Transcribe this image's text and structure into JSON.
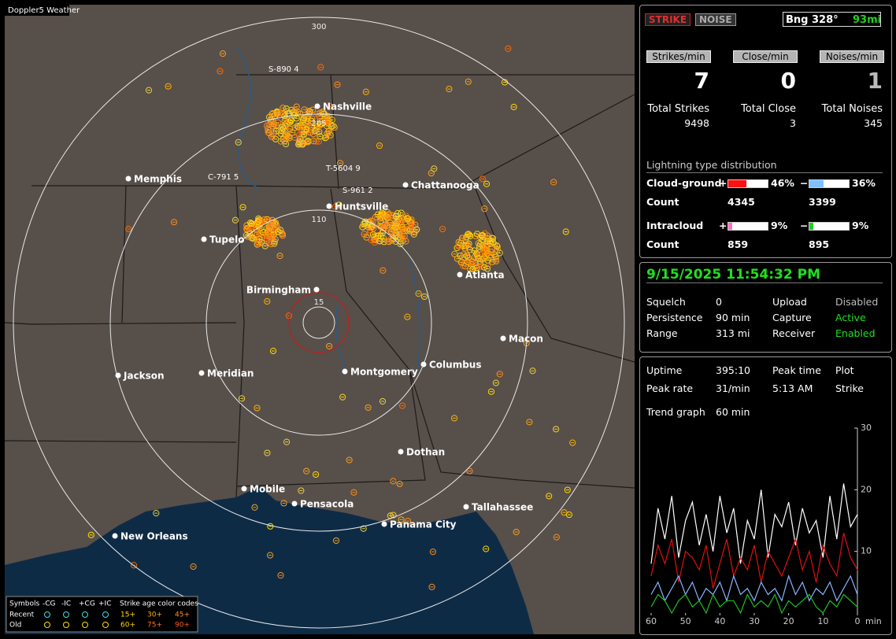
{
  "map": {
    "title": "Doppler5 Weather",
    "range_labels": [
      "300",
      "205",
      "110",
      "15"
    ],
    "stations": [
      "S-890 4",
      "T-5604 9",
      "C-791 5",
      "S-961 2"
    ],
    "cities": [
      "Nashville",
      "Memphis",
      "Chattanooga",
      "Huntsville",
      "Tupelo",
      "Atlanta",
      "Birmingham",
      "Macon",
      "Jackson",
      "Meridian",
      "Montgomery",
      "Columbus",
      "Dothan",
      "Mobile",
      "Pensacola",
      "Tallahassee",
      "Panama City",
      "New Orleans"
    ]
  },
  "legend": {
    "symbols_label": "Symbols",
    "symbols": [
      "-CG",
      "-IC",
      "+CG",
      "+IC"
    ],
    "age_title": "Strike age color codes",
    "rows": [
      {
        "label": "Recent",
        "ages": [
          "15+",
          "30+",
          "45+"
        ]
      },
      {
        "label": "Old",
        "ages": [
          "60+",
          "75+",
          "90+"
        ]
      }
    ]
  },
  "controls": {
    "strike": "STRIKE",
    "noise": "NOISE",
    "bearing": "Bng 328°",
    "distance": "93mi"
  },
  "rates": [
    {
      "label": "Strikes/min",
      "value": "7",
      "total_label": "Total Strikes",
      "total": "9498"
    },
    {
      "label": "Close/min",
      "value": "0",
      "total_label": "Total Close",
      "total": "3"
    },
    {
      "label": "Noises/min",
      "value": "1",
      "total_label": "Total Noises",
      "total": "345"
    }
  ],
  "distribution": {
    "title": "Lightning type distribution",
    "rows": [
      {
        "label": "Cloud-ground",
        "count_label": "Count",
        "positive": {
          "sign": "+",
          "value": 46,
          "label": "46%",
          "count": "4345"
        },
        "negative": {
          "sign": "−",
          "value": 36,
          "label": "36%",
          "count": "3399"
        }
      },
      {
        "label": "Intracloud",
        "count_label": "Count",
        "positive": {
          "sign": "+",
          "value": 9,
          "label": "9%",
          "count": "859"
        },
        "negative": {
          "sign": "−",
          "value": 9,
          "label": "9%",
          "count": "895"
        }
      }
    ]
  },
  "clock": "9/15/2025 11:54:32 PM",
  "status": {
    "rows": [
      [
        "Squelch",
        "0",
        "Upload",
        "Disabled"
      ],
      [
        "Persistence",
        "90 min",
        "Capture",
        "Active"
      ],
      [
        "Range",
        "313 mi",
        "Receiver",
        "Enabled"
      ]
    ]
  },
  "stats": {
    "rows": [
      [
        "Uptime",
        "395:10",
        "Peak time",
        "Plot"
      ],
      [
        "Peak rate",
        "31/min",
        "5:13 AM",
        "Strike"
      ]
    ],
    "trend_label": "Trend graph",
    "trend_span": "60 min"
  },
  "trend_graph": {
    "type": "line",
    "x": [
      60,
      58,
      56,
      54,
      52,
      50,
      48,
      46,
      44,
      42,
      40,
      38,
      36,
      34,
      32,
      30,
      28,
      26,
      24,
      22,
      20,
      18,
      16,
      14,
      12,
      10,
      8,
      6,
      4,
      2,
      0
    ],
    "xlim": [
      60,
      0
    ],
    "xticks": [
      60,
      50,
      40,
      30,
      20,
      10,
      0
    ],
    "x_unit": "min",
    "ylim": [
      0,
      30
    ],
    "yticks": [
      10,
      20,
      30
    ],
    "series": [
      {
        "color": "#ffffff",
        "values": [
          8,
          17,
          12,
          19,
          9,
          15,
          18,
          11,
          16,
          10,
          19,
          13,
          17,
          8,
          15,
          12,
          20,
          9,
          16,
          14,
          18,
          11,
          17,
          13,
          15,
          9,
          19,
          12,
          21,
          14,
          16
        ]
      },
      {
        "color": "#e01010",
        "values": [
          6,
          11,
          8,
          12,
          5,
          10,
          9,
          7,
          11,
          4,
          8,
          12,
          6,
          9,
          7,
          11,
          5,
          10,
          8,
          6,
          9,
          12,
          7,
          10,
          5,
          11,
          8,
          6,
          13,
          9,
          7
        ]
      },
      {
        "color": "#8ab4ff",
        "values": [
          3,
          5,
          2,
          4,
          6,
          3,
          5,
          2,
          4,
          3,
          5,
          2,
          6,
          3,
          4,
          2,
          5,
          3,
          4,
          2,
          6,
          3,
          5,
          2,
          4,
          3,
          5,
          2,
          4,
          6,
          3
        ]
      },
      {
        "color": "#20c020",
        "values": [
          1,
          3,
          2,
          0,
          2,
          3,
          1,
          2,
          0,
          3,
          1,
          2,
          2,
          0,
          3,
          1,
          2,
          1,
          3,
          0,
          2,
          1,
          2,
          3,
          1,
          0,
          2,
          1,
          3,
          2,
          1
        ]
      }
    ]
  }
}
